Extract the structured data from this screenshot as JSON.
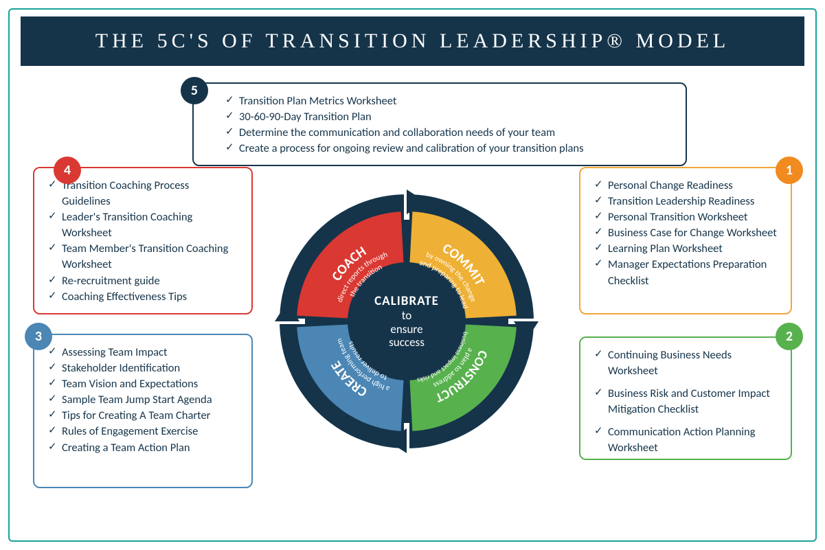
{
  "title": "THE 5C'S OF TRANSITION LEADERSHIP® MODEL",
  "colors": {
    "navy": "#15344a",
    "teal_border": "#1aa39a",
    "red": "#da3832",
    "orange_badge": "#f18a1f",
    "orange_border": "#f1a63a",
    "green": "#57b14d",
    "blue": "#4b86b4"
  },
  "center": {
    "line1": "CALIBRATE",
    "line2": "to",
    "line3": "ensure",
    "line4": "success"
  },
  "segments": {
    "commit": {
      "title": "COMMIT",
      "sub1": "by owning the change",
      "sub2": "and preparing to lead",
      "color": "#eeb035"
    },
    "construct": {
      "title": "CONSTRUCT",
      "sub1": "a plan to address",
      "sub2": "business impact and risks",
      "color": "#57b14d"
    },
    "create": {
      "title": "CREATE",
      "sub1": "a high performing team",
      "sub2": "to deliver results",
      "color": "#4b86b4"
    },
    "coach": {
      "title": "COACH",
      "sub1": "direct reports through",
      "sub2": "the transition",
      "color": "#da3832"
    }
  },
  "cards": {
    "c5": {
      "badge": "5",
      "items": [
        "Transition Plan Metrics Worksheet",
        "30-60-90-Day Transition Plan",
        "Determine the communication and collaboration needs of your team",
        "Create a process for ongoing review and calibration of your transition plans"
      ]
    },
    "c1": {
      "badge": "1",
      "items": [
        "Personal Change Readiness",
        "Transition Leadership Readiness",
        "Personal Transition Worksheet",
        "Business Case for Change Worksheet",
        "Learning Plan Worksheet",
        "Manager Expectations Preparation Checklist"
      ]
    },
    "c2": {
      "badge": "2",
      "items": [
        "Continuing Business Needs Worksheet",
        "Business Risk and Customer Impact Mitigation Checklist",
        "Communication Action Planning Worksheet"
      ]
    },
    "c3": {
      "badge": "3",
      "items": [
        "Assessing Team Impact",
        "Stakeholder Identification",
        "Team Vision and Expectations",
        "Sample Team Jump Start Agenda",
        "Tips for Creating A Team Charter",
        "Rules of Engagement Exercise",
        "Creating a Team Action Plan"
      ]
    },
    "c4": {
      "badge": "4",
      "items": [
        "Transition Coaching Process Guidelines",
        "Leader's Transition Coaching Worksheet",
        "Team Member's Transition Coaching Worksheet",
        "Re-recruitment guide",
        "Coaching Effectiveness Tips"
      ]
    }
  }
}
